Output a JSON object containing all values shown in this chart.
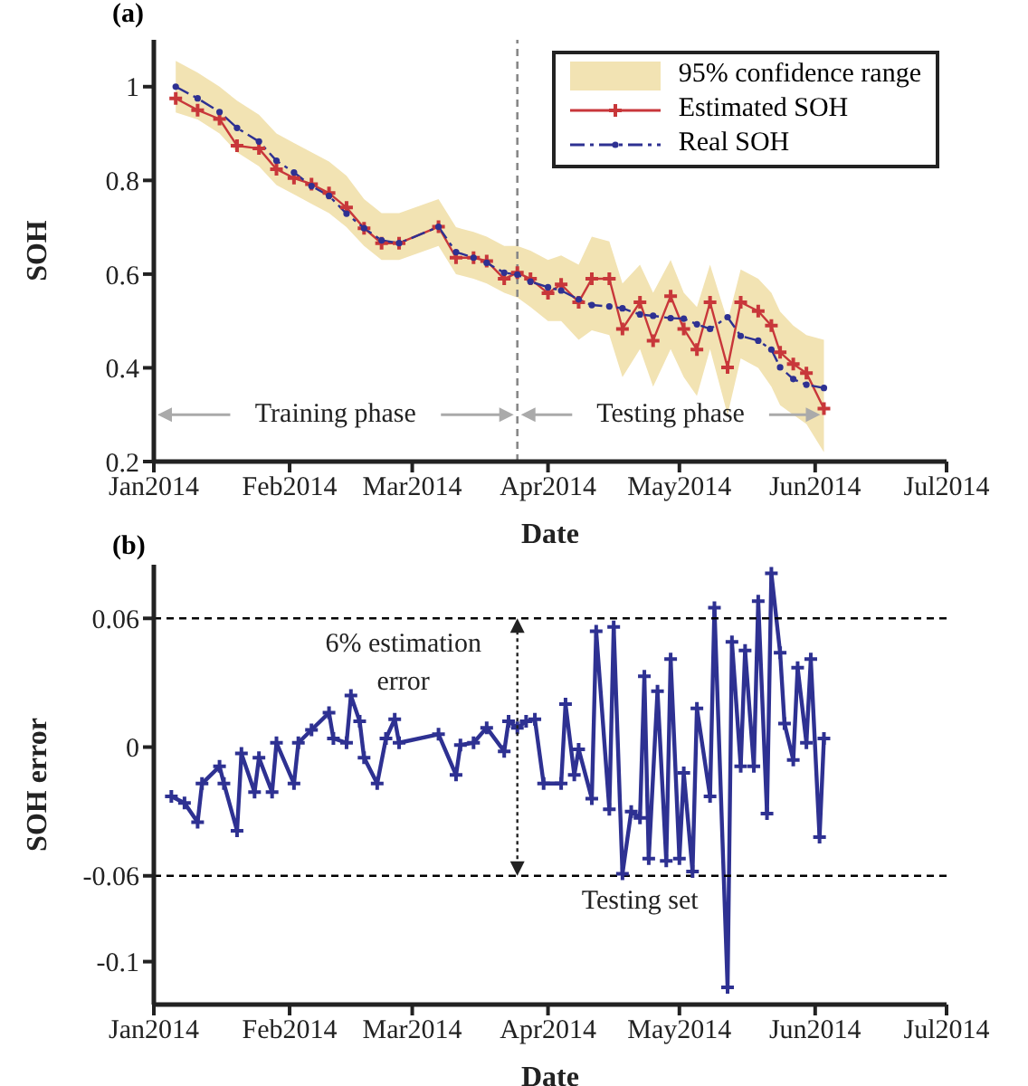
{
  "chart_data": [
    {
      "type": "line",
      "title": "(a)",
      "xlabel": "Date",
      "ylabel": "SOH",
      "legend": "top right",
      "x": [
        "2014-01-06",
        "2014-01-11",
        "2014-01-16",
        "2014-01-20",
        "2014-01-25",
        "2014-01-29",
        "2014-02-02",
        "2014-02-06",
        "2014-02-10",
        "2014-02-14",
        "2014-02-18",
        "2014-02-22",
        "2014-02-26",
        "2014-03-07",
        "2014-03-11",
        "2014-03-15",
        "2014-03-18",
        "2014-03-22",
        "2014-03-25",
        "2014-03-28",
        "2014-04-01",
        "2014-04-04",
        "2014-04-08",
        "2014-04-11",
        "2014-04-15",
        "2014-04-18",
        "2014-04-22",
        "2014-04-25",
        "2014-04-29",
        "2014-05-02",
        "2014-05-05",
        "2014-05-08",
        "2014-05-12",
        "2014-05-15",
        "2014-05-19",
        "2014-05-22",
        "2014-05-24",
        "2014-05-27",
        "2014-05-30",
        "2014-06-03"
      ],
      "series": [
        {
          "name": "Estimated SOH",
          "color": "#c8373a",
          "marker": "cross",
          "line_style": "solid",
          "values": [
            0.975,
            0.95,
            0.931,
            0.874,
            0.868,
            0.824,
            0.805,
            0.792,
            0.773,
            0.742,
            0.698,
            0.666,
            0.666,
            0.701,
            0.635,
            0.635,
            0.628,
            0.59,
            0.603,
            0.59,
            0.559,
            0.578,
            0.54,
            0.59,
            0.59,
            0.483,
            0.54,
            0.458,
            0.553,
            0.483,
            0.439,
            0.54,
            0.401,
            0.54,
            0.521,
            0.49,
            0.433,
            0.408,
            0.389,
            0.313
          ],
          "lower": [
            0.945,
            0.93,
            0.9,
            0.86,
            0.83,
            0.79,
            0.77,
            0.75,
            0.73,
            0.7,
            0.66,
            0.63,
            0.63,
            0.66,
            0.6,
            0.59,
            0.58,
            0.56,
            0.55,
            0.53,
            0.5,
            0.5,
            0.46,
            0.48,
            0.47,
            0.38,
            0.44,
            0.36,
            0.44,
            0.38,
            0.34,
            0.44,
            0.3,
            0.42,
            0.4,
            0.36,
            0.32,
            0.3,
            0.28,
            0.22
          ],
          "upper": [
            1.055,
            1.03,
            1.0,
            0.97,
            0.94,
            0.9,
            0.88,
            0.86,
            0.84,
            0.81,
            0.76,
            0.73,
            0.73,
            0.76,
            0.7,
            0.69,
            0.68,
            0.66,
            0.66,
            0.65,
            0.63,
            0.64,
            0.62,
            0.68,
            0.67,
            0.58,
            0.62,
            0.56,
            0.63,
            0.56,
            0.53,
            0.62,
            0.5,
            0.61,
            0.59,
            0.56,
            0.52,
            0.49,
            0.47,
            0.46
          ]
        },
        {
          "name": "Real SOH",
          "color": "#2e3192",
          "marker": "circle",
          "line_style": "dashed",
          "values": [
            1.0,
            0.975,
            0.946,
            0.912,
            0.883,
            0.842,
            0.817,
            0.788,
            0.767,
            0.729,
            0.698,
            0.672,
            0.666,
            0.701,
            0.647,
            0.635,
            0.624,
            0.603,
            0.599,
            0.584,
            0.572,
            0.565,
            0.546,
            0.534,
            0.531,
            0.527,
            0.514,
            0.511,
            0.506,
            0.505,
            0.493,
            0.483,
            0.508,
            0.468,
            0.458,
            0.439,
            0.401,
            0.376,
            0.364,
            0.357
          ]
        }
      ],
      "xlim": [
        "2014-01-01",
        "2014-07-01"
      ],
      "xticks": [
        {
          "value": "2014-01-01",
          "label": "Jan2014"
        },
        {
          "value": "2014-02-01",
          "label": "Feb2014"
        },
        {
          "value": "2014-03-01",
          "label": "Mar2014"
        },
        {
          "value": "2014-04-01",
          "label": "Apr2014"
        },
        {
          "value": "2014-05-01",
          "label": "May2014"
        },
        {
          "value": "2014-06-01",
          "label": "Jun2014"
        },
        {
          "value": "2014-07-01",
          "label": "Jul2014"
        }
      ],
      "ylim": [
        0.2,
        1.1
      ],
      "yticks": [
        0.2,
        0.4,
        0.6,
        0.8,
        1
      ],
      "ref_lines": [
        {
          "axis": "x",
          "value": "2014-03-25",
          "color": "#888888",
          "line_style": "dashed"
        }
      ],
      "annotations": [
        "95% confidence range",
        {
          "text": "Training phase",
          "x": "2014-03-25",
          "y": 0.3
        },
        {
          "text": "Testing phase",
          "x": "2014-06-03",
          "y": 0.3
        }
      ]
    },
    {
      "type": "line",
      "title": "(b)",
      "xlabel": "Date",
      "ylabel": "SOH error",
      "marker": "cross",
      "line_style": "solid",
      "x": [
        "2014-01-05",
        "2014-01-08",
        "2014-01-11",
        "2014-01-12",
        "2014-01-16",
        "2014-01-17",
        "2014-01-20",
        "2014-01-21",
        "2014-01-24",
        "2014-01-25",
        "2014-01-28",
        "2014-01-29",
        "2014-02-02",
        "2014-02-03",
        "2014-02-06",
        "2014-02-10",
        "2014-02-11",
        "2014-02-14",
        "2014-02-15",
        "2014-02-17",
        "2014-02-18",
        "2014-02-21",
        "2014-02-23",
        "2014-02-25",
        "2014-02-26",
        "2014-03-07",
        "2014-03-11",
        "2014-03-12",
        "2014-03-15",
        "2014-03-18",
        "2014-03-22",
        "2014-03-23",
        "2014-03-25",
        "2014-03-27",
        "2014-03-29",
        "2014-03-31",
        "2014-04-04",
        "2014-04-05",
        "2014-04-07",
        "2014-04-08",
        "2014-04-11",
        "2014-04-12",
        "2014-04-15",
        "2014-04-16",
        "2014-04-18",
        "2014-04-20",
        "2014-04-22",
        "2014-04-23",
        "2014-04-24",
        "2014-04-26",
        "2014-04-28",
        "2014-04-29",
        "2014-05-01",
        "2014-05-02",
        "2014-05-04",
        "2014-05-05",
        "2014-05-08",
        "2014-05-09",
        "2014-05-12",
        "2014-05-13",
        "2014-05-15",
        "2014-05-16",
        "2014-05-18",
        "2014-05-19",
        "2014-05-21",
        "2014-05-22",
        "2014-05-24",
        "2014-05-25",
        "2014-05-27",
        "2014-05-28",
        "2014-05-30",
        "2014-05-31",
        "2014-06-02",
        "2014-06-03"
      ],
      "series": [
        {
          "color": "#2e3192",
          "values": [
            -0.023,
            -0.026,
            -0.035,
            -0.017,
            -0.009,
            -0.017,
            -0.039,
            -0.003,
            -0.021,
            -0.005,
            -0.021,
            0.002,
            -0.017,
            0.002,
            0.008,
            0.016,
            0.004,
            0.002,
            0.024,
            0.012,
            -0.005,
            -0.017,
            0.004,
            0.013,
            0.002,
            0.006,
            -0.013,
            0.001,
            0.002,
            0.009,
            -0.002,
            0.012,
            0.009,
            0.012,
            0.013,
            -0.017,
            -0.017,
            0.02,
            -0.013,
            -0.001,
            -0.024,
            0.054,
            -0.029,
            0.056,
            -0.059,
            -0.03,
            -0.033,
            0.033,
            -0.052,
            0.026,
            -0.053,
            0.041,
            -0.052,
            -0.012,
            -0.058,
            0.018,
            -0.023,
            0.065,
            -0.112,
            0.049,
            -0.009,
            0.045,
            -0.009,
            0.068,
            -0.031,
            0.081,
            0.044,
            0.011,
            -0.006,
            0.037,
            0.002,
            0.041,
            -0.042,
            0.004
          ]
        }
      ],
      "xlim": [
        "2014-01-01",
        "2014-07-01"
      ],
      "xticks": [
        {
          "value": "2014-01-01",
          "label": "Jan2014"
        },
        {
          "value": "2014-02-01",
          "label": "Feb2014"
        },
        {
          "value": "2014-03-01",
          "label": "Mar2014"
        },
        {
          "value": "2014-04-01",
          "label": "Apr2014"
        },
        {
          "value": "2014-05-01",
          "label": "May2014"
        },
        {
          "value": "2014-06-01",
          "label": "Jun2014"
        },
        {
          "value": "2014-07-01",
          "label": "Jul2014"
        }
      ],
      "ylim": [
        -0.12,
        0.085
      ],
      "yticks": [
        -0.1,
        -0.06,
        0,
        0.06
      ],
      "ref_lines": [
        {
          "axis": "y",
          "value": 0.06,
          "color": "#000000",
          "line_style": "dashed"
        },
        {
          "axis": "y",
          "value": -0.06,
          "color": "#000000",
          "line_style": "dashed"
        }
      ],
      "annotations": [
        "6% estimation error",
        "Testing set"
      ]
    }
  ]
}
